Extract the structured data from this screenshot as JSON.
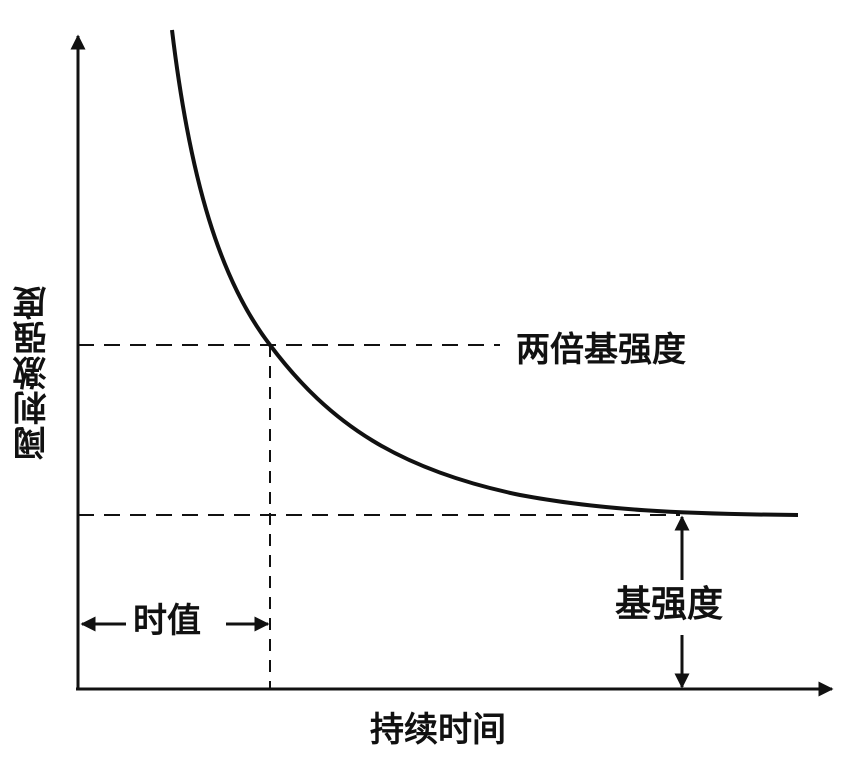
{
  "diagram": {
    "y_axis_label": "阈刺激强度",
    "x_axis_label": "持续时间",
    "double_rheobase_label": "两倍基强度",
    "rheobase_label": "基强度",
    "chronaxie_label": "时值"
  },
  "colors": {
    "ink": "#111111",
    "background": "#ffffff"
  }
}
